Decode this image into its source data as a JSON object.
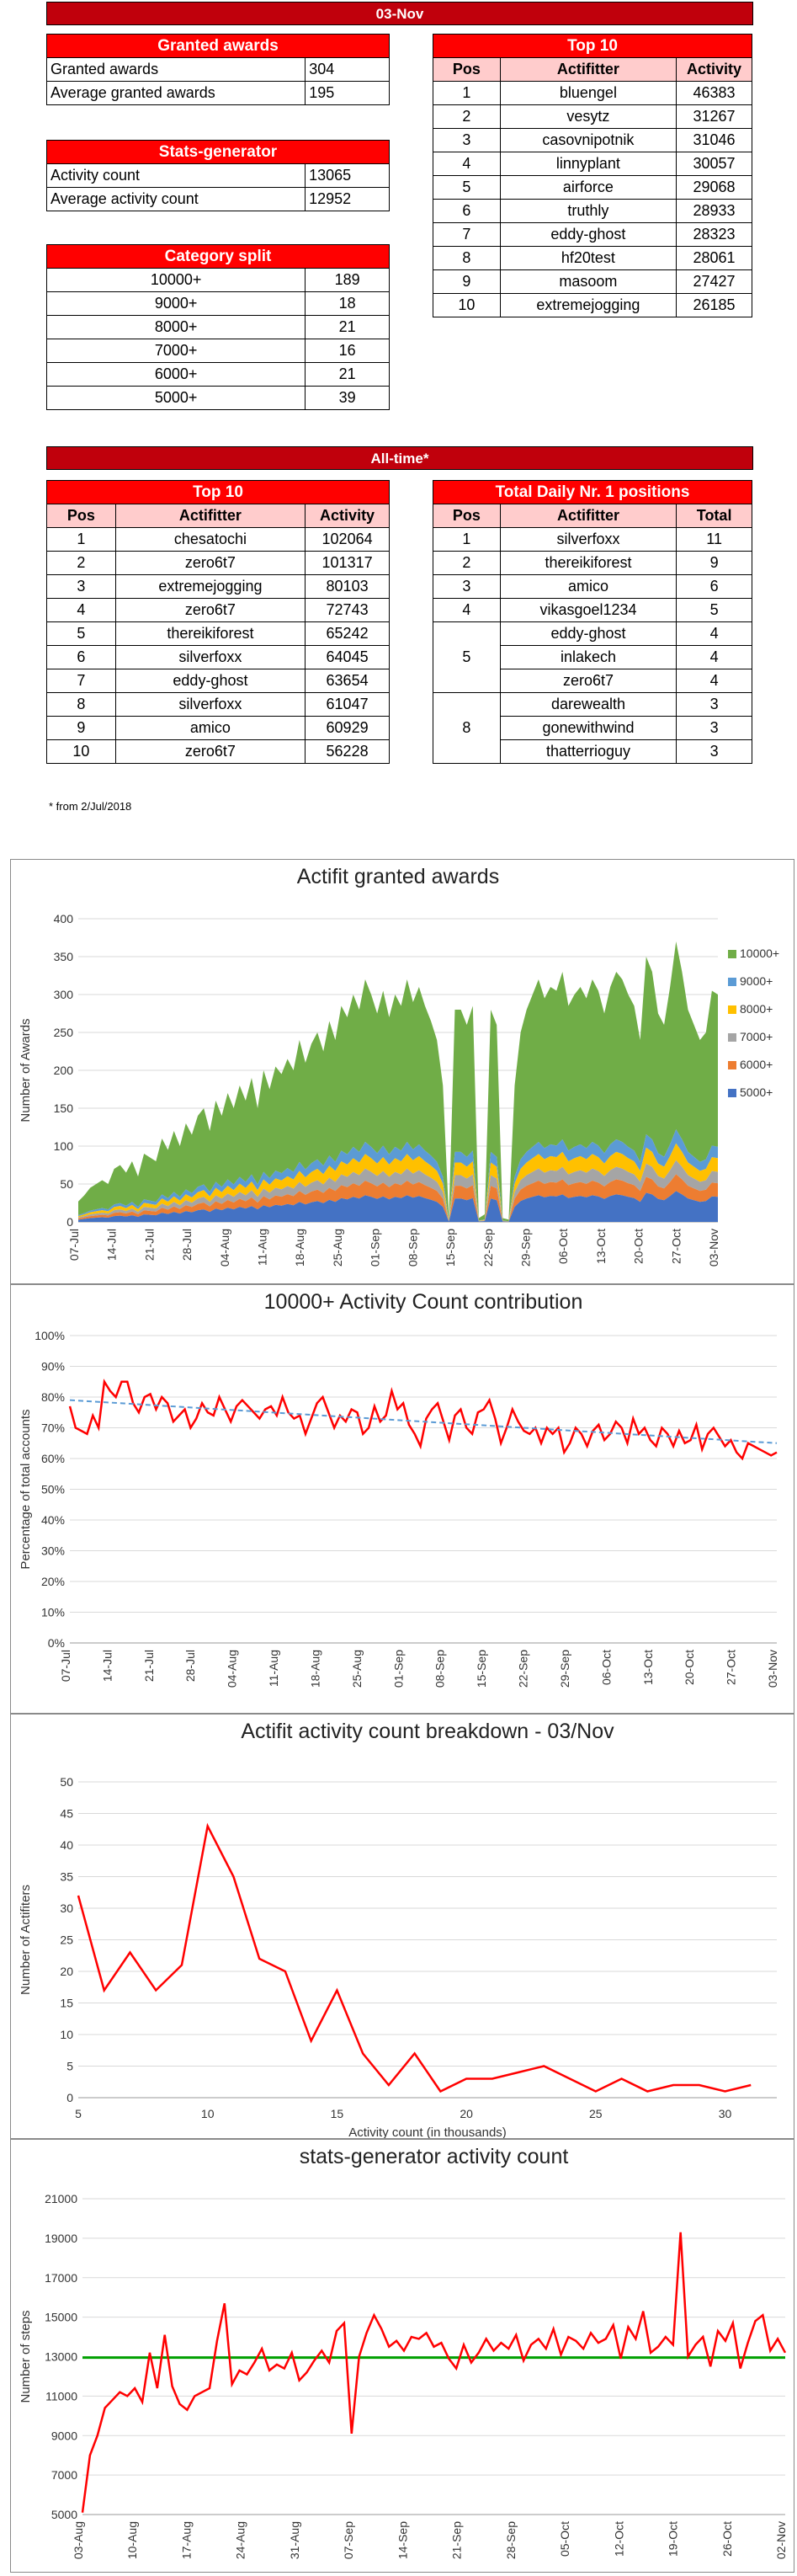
{
  "date_banner": "03-Nov",
  "granted_awards": {
    "title": "Granted awards",
    "rows": [
      {
        "label": "Granted awards",
        "value": "304"
      },
      {
        "label": "Average granted awards",
        "value": "195"
      }
    ]
  },
  "stats_generator": {
    "title": "Stats-generator",
    "rows": [
      {
        "label": "Activity count",
        "value": "13065"
      },
      {
        "label": "Average activity count",
        "value": "12952"
      }
    ]
  },
  "category_split": {
    "title": "Category split",
    "rows": [
      {
        "label": "10000+",
        "value": "189"
      },
      {
        "label": "9000+",
        "value": "18"
      },
      {
        "label": "8000+",
        "value": "21"
      },
      {
        "label": "7000+",
        "value": "16"
      },
      {
        "label": "6000+",
        "value": "21"
      },
      {
        "label": "5000+",
        "value": "39"
      }
    ]
  },
  "top10_day": {
    "title": "Top 10",
    "headers": [
      "Pos",
      "Actifitter",
      "Activity"
    ],
    "rows": [
      [
        "1",
        "bluengel",
        "46383"
      ],
      [
        "2",
        "vesytz",
        "31267"
      ],
      [
        "3",
        "casovnipotnik",
        "31046"
      ],
      [
        "4",
        "linnyplant",
        "30057"
      ],
      [
        "5",
        "airforce",
        "29068"
      ],
      [
        "6",
        "truthly",
        "28933"
      ],
      [
        "7",
        "eddy-ghost",
        "28323"
      ],
      [
        "8",
        "hf20test",
        "28061"
      ],
      [
        "9",
        "masoom",
        "27427"
      ],
      [
        "10",
        "extremejogging",
        "26185"
      ]
    ]
  },
  "alltime_banner": "All-time*",
  "top10_alltime": {
    "title": "Top 10",
    "headers": [
      "Pos",
      "Actifitter",
      "Activity"
    ],
    "rows": [
      [
        "1",
        "chesatochi",
        "102064"
      ],
      [
        "2",
        "zero6t7",
        "101317"
      ],
      [
        "3",
        "extremejogging",
        "80103"
      ],
      [
        "4",
        "zero6t7",
        "72743"
      ],
      [
        "5",
        "thereikiforest",
        "65242"
      ],
      [
        "6",
        "silverfoxx",
        "64045"
      ],
      [
        "7",
        "eddy-ghost",
        "63654"
      ],
      [
        "8",
        "silverfoxx",
        "61047"
      ],
      [
        "9",
        "amico",
        "60929"
      ],
      [
        "10",
        "zero6t7",
        "56228"
      ]
    ]
  },
  "daily_nr1": {
    "title": "Total Daily Nr. 1 positions",
    "headers": [
      "Pos",
      "Actifitter",
      "Total"
    ],
    "rows": [
      [
        "1",
        "silverfoxx",
        "11"
      ],
      [
        "2",
        "thereikiforest",
        "9"
      ],
      [
        "3",
        "amico",
        "6"
      ],
      [
        "4",
        "vikasgoel1234",
        "5"
      ],
      [
        "5",
        "eddy-ghost",
        "4"
      ],
      [
        "",
        "inlakech",
        "4"
      ],
      [
        "",
        "zero6t7",
        "4"
      ],
      [
        "8",
        "darewealth",
        "3"
      ],
      [
        "",
        "gonewithwind",
        "3"
      ],
      [
        "",
        "thatterrioguy",
        "3"
      ]
    ]
  },
  "footnote": "* from 2/Jul/2018",
  "chart_data": [
    {
      "type": "area",
      "title": "Actifit granted awards",
      "ylabel": "Number of Awards",
      "xlabel": "",
      "ylim": [
        0,
        400
      ],
      "yticks": [
        0,
        50,
        100,
        150,
        200,
        250,
        300,
        350,
        400
      ],
      "xticks": [
        "07-Jul",
        "14-Jul",
        "21-Jul",
        "28-Jul",
        "04-Aug",
        "11-Aug",
        "18-Aug",
        "25-Aug",
        "01-Sep",
        "08-Sep",
        "15-Sep",
        "22-Sep",
        "29-Sep",
        "06-Oct",
        "13-Oct",
        "20-Oct",
        "27-Oct",
        "03-Nov"
      ],
      "legend": [
        "10000+",
        "9000+",
        "8000+",
        "7000+",
        "6000+",
        "5000+"
      ],
      "legend_position": "right",
      "colors": {
        "10000+": "#70ad47",
        "9000+": "#5b9bd5",
        "8000+": "#ffc000",
        "7000+": "#a5a5a5",
        "6000+": "#ed7d31",
        "5000+": "#4472c4"
      },
      "total_values": [
        27,
        35,
        45,
        50,
        55,
        50,
        70,
        75,
        65,
        80,
        60,
        90,
        85,
        80,
        110,
        95,
        120,
        100,
        130,
        115,
        140,
        150,
        120,
        160,
        140,
        170,
        150,
        180,
        160,
        190,
        150,
        200,
        175,
        205,
        195,
        215,
        200,
        240,
        210,
        235,
        250,
        225,
        265,
        240,
        285,
        270,
        300,
        280,
        320,
        300,
        275,
        305,
        270,
        300,
        285,
        320,
        290,
        310,
        285,
        265,
        240,
        180,
        5,
        280,
        280,
        260,
        285,
        5,
        10,
        280,
        260,
        5,
        3,
        180,
        250,
        280,
        300,
        320,
        295,
        310,
        305,
        330,
        285,
        300,
        310,
        295,
        320,
        305,
        275,
        310,
        330,
        320,
        300,
        285,
        240,
        350,
        330,
        275,
        260,
        310,
        370,
        330,
        280,
        260,
        240,
        250,
        305,
        300
      ],
      "stack_fractions": {
        "5000+": 0.11,
        "6000+": 0.06,
        "7000+": 0.05,
        "8000+": 0.06,
        "9000+": 0.05
      }
    },
    {
      "type": "line",
      "title": "10000+ Activity Count contribution",
      "ylabel": "Percentage of total accounts",
      "xlabel": "",
      "ylim": [
        0,
        100
      ],
      "yticks": [
        "0%",
        "10%",
        "20%",
        "30%",
        "40%",
        "50%",
        "60%",
        "70%",
        "80%",
        "90%",
        "100%"
      ],
      "xticks": [
        "07-Jul",
        "14-Jul",
        "21-Jul",
        "28-Jul",
        "04-Aug",
        "11-Aug",
        "18-Aug",
        "25-Aug",
        "01-Sep",
        "08-Sep",
        "15-Sep",
        "22-Sep",
        "29-Sep",
        "06-Oct",
        "13-Oct",
        "20-Oct",
        "27-Oct",
        "03-Nov"
      ],
      "values": [
        77,
        70,
        69,
        68,
        74,
        70,
        85,
        82,
        80,
        85,
        85,
        78,
        75,
        80,
        81,
        76,
        80,
        78,
        72,
        74,
        76,
        70,
        73,
        78,
        75,
        74,
        80,
        76,
        72,
        77,
        79,
        77,
        75,
        73,
        76,
        77,
        74,
        80,
        75,
        73,
        74,
        68,
        73,
        78,
        80,
        75,
        70,
        74,
        72,
        76,
        75,
        68,
        70,
        77,
        72,
        74,
        82,
        76,
        78,
        71,
        68,
        64,
        73,
        76,
        78,
        72,
        66,
        74,
        76,
        70,
        68,
        75,
        76,
        79,
        73,
        65,
        70,
        76,
        72,
        69,
        68,
        70,
        65,
        70,
        68,
        70,
        62,
        65,
        70,
        68,
        64,
        69,
        71,
        66,
        68,
        72,
        70,
        65,
        73,
        68,
        70,
        66,
        64,
        70,
        68,
        64,
        69,
        65,
        66,
        71,
        63,
        68,
        70,
        67,
        64,
        66,
        62,
        60,
        65,
        64,
        63,
        62,
        61,
        62
      ],
      "trend": [
        79,
        65
      ],
      "colors": {
        "series": "#ff0000",
        "trend": "#5b9bd5"
      }
    },
    {
      "type": "line",
      "title": "Actifit activity count breakdown - 03/Nov",
      "xlabel": "Activity count (in thousands)",
      "ylabel": "Number of Actifiters",
      "ylim": [
        0,
        50
      ],
      "yticks": [
        0,
        5,
        10,
        15,
        20,
        25,
        30,
        35,
        40,
        45,
        50
      ],
      "xlim": [
        5,
        32
      ],
      "xticks": [
        5,
        10,
        15,
        20,
        25,
        30
      ],
      "x": [
        5,
        6,
        7,
        8,
        9,
        10,
        11,
        12,
        13,
        14,
        15,
        16,
        17,
        18,
        19,
        20,
        21,
        22,
        23,
        24,
        25,
        26,
        27,
        28,
        29,
        30,
        31
      ],
      "values": [
        32,
        17,
        23,
        17,
        21,
        43,
        35,
        22,
        20,
        9,
        17,
        7,
        2,
        7,
        1,
        3,
        3,
        4,
        5,
        3,
        1,
        3,
        1,
        2,
        2,
        1,
        2
      ],
      "colors": {
        "series": "#ff0000"
      }
    },
    {
      "type": "line",
      "title": "stats-generator activity count",
      "ylabel": "Number of steps",
      "xlabel": "",
      "ylim": [
        5000,
        21000
      ],
      "yticks": [
        5000,
        7000,
        9000,
        11000,
        13000,
        15000,
        17000,
        19000,
        21000
      ],
      "xticks": [
        "03-Aug",
        "10-Aug",
        "17-Aug",
        "24-Aug",
        "31-Aug",
        "07-Sep",
        "14-Sep",
        "21-Sep",
        "28-Sep",
        "05-Oct",
        "12-Oct",
        "19-Oct",
        "26-Oct",
        "02-Nov"
      ],
      "values": [
        5100,
        8000,
        9000,
        10400,
        10800,
        11200,
        11000,
        11400,
        10700,
        13200,
        11400,
        14100,
        11500,
        10600,
        10300,
        11000,
        11200,
        11400,
        13800,
        15700,
        11600,
        12300,
        12100,
        12700,
        13400,
        12300,
        12600,
        12400,
        13200,
        11800,
        12200,
        12800,
        13300,
        12700,
        14300,
        14700,
        9100,
        13000,
        14200,
        15100,
        14400,
        13500,
        13800,
        13300,
        14000,
        13900,
        14200,
        13500,
        13700,
        12900,
        12400,
        13600,
        12700,
        13200,
        13900,
        13300,
        13700,
        13400,
        14100,
        12800,
        13600,
        13900,
        13400,
        14400,
        13100,
        14000,
        13800,
        13400,
        14200,
        13700,
        13900,
        14600,
        12900,
        14500,
        13900,
        15300,
        13200,
        13500,
        14000,
        13600,
        19300,
        13000,
        13600,
        14000,
        12500,
        14300,
        13800,
        14700,
        12400,
        13700,
        14800,
        15100,
        13300,
        13900,
        13200
      ],
      "average": 12952,
      "colors": {
        "series": "#ff0000",
        "average": "#00a000"
      }
    }
  ]
}
